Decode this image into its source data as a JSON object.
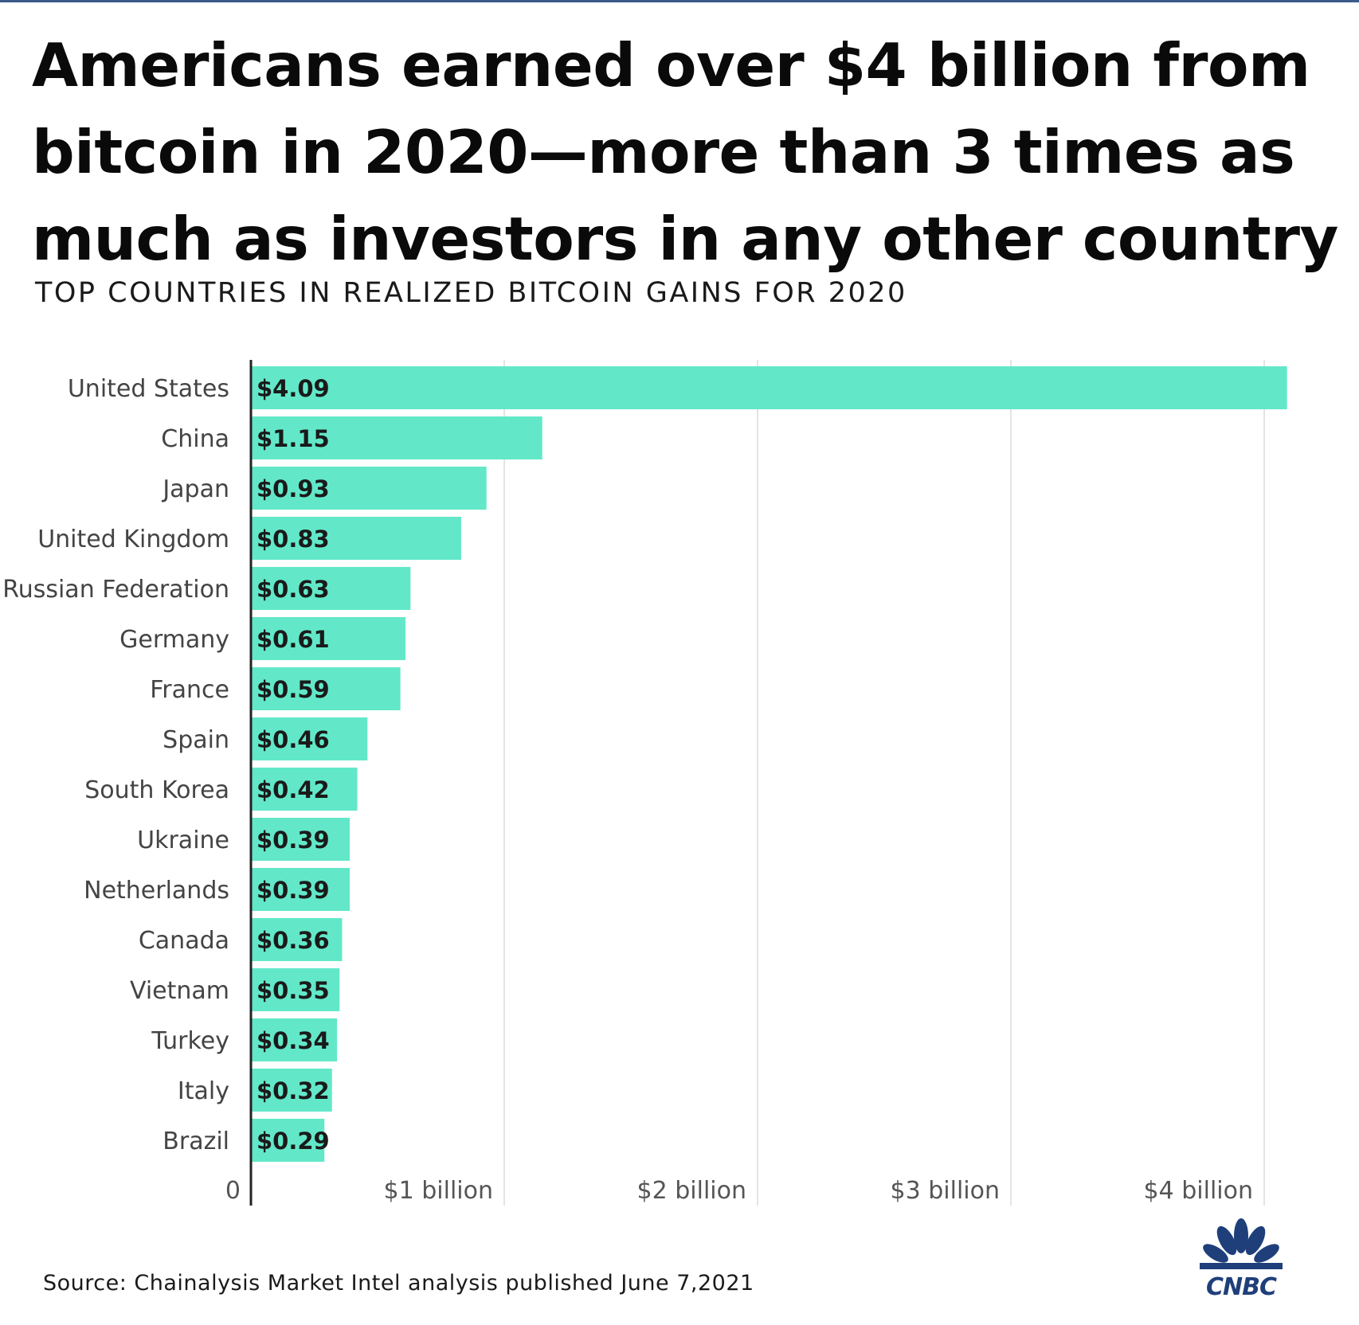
{
  "headline": {
    "line1": "Americans earned over $4 billion from",
    "line2": "bitcoin in 2020—more than 3 times as",
    "line3": "much as investors in any other country"
  },
  "subtitle": "TOP COUNTRIES IN REALIZED BITCOIN GAINS FOR 2020",
  "source": "Source: Chainalysis Market Intel analysis published June 7,2021",
  "logo_text": "CNBC",
  "colors": {
    "bar": "#62e8c8",
    "grid": "#e4e4e4",
    "axis": "#222222",
    "category_label": "#444444",
    "value_label": "#1a1a1a",
    "tick_label": "#555555"
  },
  "chart_data": {
    "type": "bar",
    "orientation": "horizontal",
    "title": "Americans earned over $4 billion from bitcoin in 2020—more than 3 times as much as investors in any other country",
    "subtitle": "TOP COUNTRIES IN REALIZED BITCOIN GAINS FOR 2020",
    "categories": [
      "United States",
      "China",
      "Japan",
      "United Kingdom",
      "Russian Federation",
      "Germany",
      "France",
      "Spain",
      "South Korea",
      "Ukraine",
      "Netherlands",
      "Canada",
      "Vietnam",
      "Turkey",
      "Italy",
      "Brazil"
    ],
    "values": [
      4.09,
      1.15,
      0.93,
      0.83,
      0.63,
      0.61,
      0.59,
      0.46,
      0.42,
      0.39,
      0.39,
      0.36,
      0.35,
      0.34,
      0.32,
      0.29
    ],
    "value_labels": [
      "$4.09",
      "$1.15",
      "$0.93",
      "$0.83",
      "$0.63",
      "$0.61",
      "$0.59",
      "$0.46",
      "$0.42",
      "$0.39",
      "$0.39",
      "$0.36",
      "$0.35",
      "$0.34",
      "$0.32",
      "$0.29"
    ],
    "x_ticks": [
      0,
      1,
      2,
      3,
      4
    ],
    "x_tick_labels": [
      "0",
      "$1 billion",
      "$2 billion",
      "$3 billion",
      "$4 billion"
    ],
    "xlim": [
      0,
      4.1
    ],
    "grid": true,
    "legend": "none"
  }
}
